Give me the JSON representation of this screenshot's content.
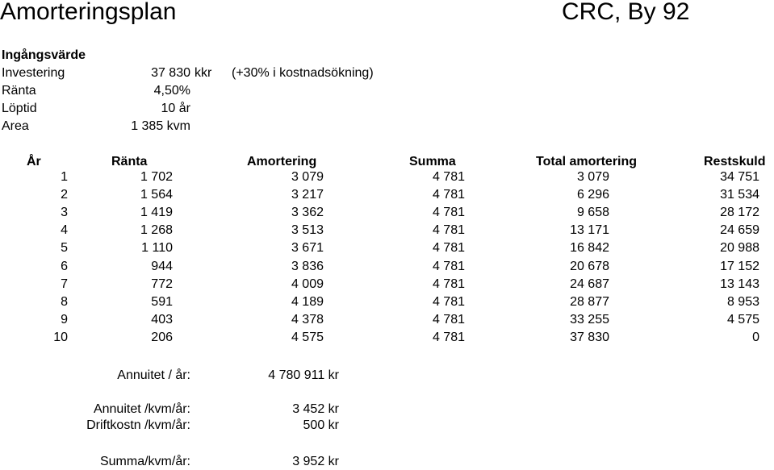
{
  "header": {
    "title": "Amorteringsplan",
    "project": "CRC, By 92"
  },
  "inputs": {
    "section_label": "Ingångsvärde",
    "investering_label": "Investering",
    "investering_value": "37 830",
    "investering_unit": "kkr",
    "investering_note": "(+30% i kostnadsökning)",
    "ranta_label": "Ränta",
    "ranta_value": "4,50%",
    "loptid_label": "Löptid",
    "loptid_value": "10 år",
    "area_label": "Area",
    "area_value": "1 385 kvm"
  },
  "table": {
    "columns": [
      "År",
      "Ränta",
      "Amortering",
      "Summa",
      "Total amortering",
      "Restskuld"
    ],
    "rows": [
      [
        "1",
        "1 702",
        "3 079",
        "4 781",
        "3 079",
        "34 751"
      ],
      [
        "2",
        "1 564",
        "3 217",
        "4 781",
        "6 296",
        "31 534"
      ],
      [
        "3",
        "1 419",
        "3 362",
        "4 781",
        "9 658",
        "28 172"
      ],
      [
        "4",
        "1 268",
        "3 513",
        "4 781",
        "13 171",
        "24 659"
      ],
      [
        "5",
        "1 110",
        "3 671",
        "4 781",
        "16 842",
        "20 988"
      ],
      [
        "6",
        "944",
        "3 836",
        "4 781",
        "20 678",
        "17 152"
      ],
      [
        "7",
        "772",
        "4 009",
        "4 781",
        "24 687",
        "13 143"
      ],
      [
        "8",
        "591",
        "4 189",
        "4 781",
        "28 877",
        "8 953"
      ],
      [
        "9",
        "403",
        "4 378",
        "4 781",
        "33 255",
        "4 575"
      ],
      [
        "10",
        "206",
        "4 575",
        "4 781",
        "37 830",
        "0"
      ]
    ]
  },
  "summary": {
    "annuitet_label": "Annuitet / år:",
    "annuitet_value": "4 780 911 kr",
    "annuitet_kvm_label": "Annuitet /kvm/år:",
    "annuitet_kvm_value": "3 452 kr",
    "driftkostn_label": "Driftkostn /kvm/år:",
    "driftkostn_value": "500 kr",
    "summa_label": "Summa/kvm/år:",
    "summa_value": "3 952 kr"
  }
}
